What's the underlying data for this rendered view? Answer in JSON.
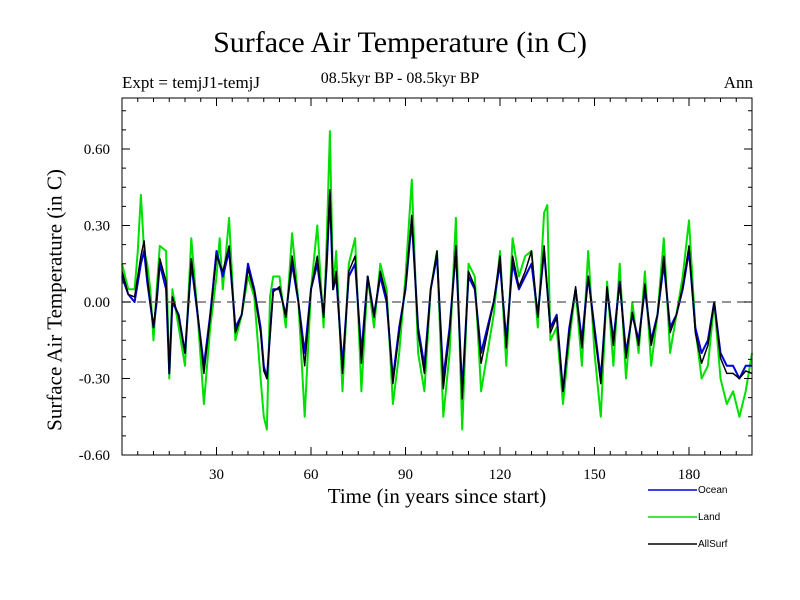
{
  "chart_data": {
    "type": "line",
    "title": "Surface Air Temperature (in C)",
    "subtitle": "08.5kyr BP - 08.5kyr BP",
    "left_label": "Expt = temjJ1-temjJ",
    "right_label": "Ann",
    "xlabel": "Time (in years since start)",
    "ylabel": "Surface Air Temperature (in C)",
    "xlim": [
      0,
      200
    ],
    "ylim": [
      -0.6,
      0.8
    ],
    "xticks": [
      30,
      60,
      90,
      120,
      150,
      180
    ],
    "xtick_labels": [
      "30",
      "60",
      "90",
      "120",
      "150",
      "180"
    ],
    "yticks": [
      -0.6,
      -0.3,
      0.0,
      0.3,
      0.6
    ],
    "ytick_labels": [
      "-0.60",
      "-0.30",
      "0.00",
      "0.30",
      "0.60"
    ],
    "zero_line": 0.0,
    "series": [
      {
        "name": "Land",
        "color": "#00e000",
        "x": [
          0,
          2,
          4,
          5,
          6,
          7,
          8,
          9,
          10,
          11,
          12,
          14,
          15,
          16,
          18,
          20,
          22,
          24,
          26,
          28,
          30,
          31,
          32,
          34,
          36,
          38,
          40,
          42,
          44,
          45,
          46,
          47,
          48,
          50,
          52,
          54,
          56,
          58,
          60,
          62,
          64,
          65,
          66,
          67,
          68,
          70,
          72,
          74,
          76,
          78,
          80,
          82,
          84,
          86,
          88,
          90,
          92,
          94,
          96,
          98,
          100,
          102,
          104,
          106,
          108,
          110,
          112,
          114,
          116,
          118,
          120,
          122,
          124,
          126,
          128,
          130,
          132,
          134,
          135,
          136,
          138,
          140,
          142,
          144,
          146,
          148,
          150,
          152,
          154,
          156,
          158,
          160,
          162,
          164,
          166,
          168,
          170,
          172,
          174,
          176,
          178,
          180,
          182,
          184,
          186,
          188,
          190,
          192,
          194,
          196,
          198,
          200
        ],
        "values": [
          0.15,
          0.05,
          0.05,
          0.2,
          0.42,
          0.2,
          0.15,
          0.05,
          -0.15,
          0.05,
          0.22,
          0.2,
          -0.3,
          0.05,
          -0.1,
          -0.25,
          0.25,
          -0.05,
          -0.4,
          -0.1,
          0.1,
          0.25,
          0.05,
          0.33,
          -0.15,
          -0.05,
          0.1,
          0.02,
          -0.3,
          -0.45,
          -0.5,
          0.02,
          0.1,
          0.1,
          -0.1,
          0.27,
          0.0,
          -0.45,
          0.05,
          0.3,
          -0.1,
          0.25,
          0.67,
          0.05,
          0.2,
          -0.35,
          0.15,
          0.25,
          -0.35,
          0.1,
          -0.1,
          0.15,
          0.05,
          -0.4,
          -0.2,
          0.1,
          0.48,
          -0.2,
          -0.35,
          0.05,
          0.2,
          -0.45,
          -0.2,
          0.33,
          -0.5,
          0.15,
          0.1,
          -0.35,
          -0.2,
          -0.05,
          0.2,
          -0.25,
          0.25,
          0.1,
          0.18,
          0.2,
          -0.1,
          0.35,
          0.38,
          -0.15,
          -0.1,
          -0.4,
          -0.15,
          0.05,
          -0.25,
          0.2,
          -0.2,
          -0.45,
          0.08,
          -0.25,
          0.15,
          -0.3,
          0.0,
          -0.2,
          0.12,
          -0.25,
          -0.05,
          0.25,
          -0.2,
          -0.05,
          0.1,
          0.32,
          -0.1,
          -0.3,
          -0.25,
          0.0,
          -0.3,
          -0.4,
          -0.35,
          -0.45,
          -0.35,
          -0.2
        ],
        "legend": "Land"
      },
      {
        "name": "Ocean",
        "color": "#0000d8",
        "x": [
          0,
          2,
          4,
          6,
          7,
          8,
          10,
          11,
          12,
          14,
          15,
          16,
          18,
          20,
          22,
          24,
          26,
          28,
          30,
          32,
          34,
          36,
          38,
          40,
          42,
          44,
          45,
          46,
          48,
          50,
          52,
          54,
          56,
          58,
          60,
          62,
          64,
          65,
          66,
          67,
          68,
          70,
          72,
          74,
          76,
          78,
          80,
          82,
          84,
          86,
          88,
          90,
          92,
          94,
          96,
          98,
          100,
          102,
          104,
          106,
          108,
          110,
          112,
          114,
          116,
          118,
          120,
          122,
          124,
          126,
          128,
          130,
          132,
          134,
          136,
          138,
          140,
          142,
          144,
          146,
          148,
          150,
          152,
          154,
          156,
          158,
          160,
          162,
          164,
          166,
          168,
          170,
          172,
          174,
          176,
          178,
          180,
          182,
          184,
          186,
          188,
          190,
          192,
          194,
          196,
          198,
          200
        ],
        "values": [
          0.1,
          0.03,
          0.0,
          0.15,
          0.2,
          0.08,
          -0.1,
          0.0,
          0.15,
          0.05,
          -0.28,
          0.0,
          -0.05,
          -0.2,
          0.15,
          -0.05,
          -0.25,
          -0.05,
          0.2,
          0.1,
          0.2,
          -0.1,
          -0.05,
          0.15,
          0.05,
          -0.1,
          -0.25,
          -0.3,
          0.05,
          0.05,
          -0.05,
          0.15,
          0.0,
          -0.2,
          0.05,
          0.15,
          -0.05,
          0.15,
          0.42,
          0.05,
          0.1,
          -0.25,
          0.1,
          0.15,
          -0.2,
          0.1,
          -0.05,
          0.1,
          0.0,
          -0.3,
          -0.1,
          0.05,
          0.32,
          -0.1,
          -0.25,
          0.05,
          0.18,
          -0.3,
          -0.1,
          0.2,
          -0.35,
          0.1,
          0.05,
          -0.2,
          -0.1,
          0.0,
          0.15,
          -0.15,
          0.15,
          0.05,
          0.1,
          0.15,
          -0.05,
          0.2,
          -0.1,
          -0.05,
          -0.35,
          -0.1,
          0.05,
          -0.15,
          0.1,
          -0.1,
          -0.3,
          0.05,
          -0.15,
          0.08,
          -0.2,
          -0.05,
          -0.15,
          0.05,
          -0.15,
          -0.05,
          0.15,
          -0.1,
          -0.05,
          0.05,
          0.2,
          -0.1,
          -0.2,
          -0.15,
          0.0,
          -0.2,
          -0.25,
          -0.25,
          -0.3,
          -0.25,
          -0.25
        ],
        "legend": "Ocean"
      },
      {
        "name": "AllSurf",
        "color": "#000000",
        "x": [
          0,
          2,
          4,
          6,
          7,
          8,
          10,
          11,
          12,
          14,
          15,
          16,
          18,
          20,
          22,
          24,
          26,
          28,
          30,
          32,
          34,
          36,
          38,
          40,
          42,
          44,
          45,
          46,
          48,
          50,
          52,
          54,
          56,
          58,
          60,
          62,
          64,
          65,
          66,
          67,
          68,
          70,
          72,
          74,
          76,
          78,
          80,
          82,
          84,
          86,
          88,
          90,
          92,
          94,
          96,
          98,
          100,
          102,
          104,
          106,
          108,
          110,
          112,
          114,
          116,
          118,
          120,
          122,
          124,
          126,
          128,
          130,
          132,
          134,
          136,
          138,
          140,
          142,
          144,
          146,
          148,
          150,
          152,
          154,
          156,
          158,
          160,
          162,
          164,
          166,
          168,
          170,
          172,
          174,
          176,
          178,
          180,
          182,
          184,
          186,
          188,
          190,
          192,
          194,
          196,
          198,
          200
        ],
        "values": [
          0.12,
          0.03,
          0.02,
          0.18,
          0.24,
          0.1,
          -0.1,
          0.02,
          0.17,
          0.08,
          -0.28,
          0.02,
          -0.06,
          -0.2,
          0.17,
          -0.04,
          -0.28,
          -0.06,
          0.18,
          0.12,
          0.22,
          -0.12,
          -0.05,
          0.13,
          0.04,
          -0.12,
          -0.27,
          -0.3,
          0.04,
          0.06,
          -0.06,
          0.18,
          0.0,
          -0.25,
          0.05,
          0.18,
          -0.06,
          0.18,
          0.44,
          0.05,
          0.12,
          -0.28,
          0.12,
          0.18,
          -0.24,
          0.1,
          -0.06,
          0.12,
          0.02,
          -0.32,
          -0.12,
          0.06,
          0.34,
          -0.12,
          -0.28,
          0.05,
          0.2,
          -0.34,
          -0.12,
          0.22,
          -0.38,
          0.12,
          0.06,
          -0.24,
          -0.12,
          0.0,
          0.18,
          -0.18,
          0.18,
          0.06,
          0.12,
          0.2,
          -0.06,
          0.22,
          -0.12,
          -0.06,
          -0.35,
          -0.12,
          0.06,
          -0.18,
          0.1,
          -0.12,
          -0.32,
          0.06,
          -0.17,
          0.08,
          -0.22,
          -0.04,
          -0.17,
          0.07,
          -0.17,
          -0.05,
          0.18,
          -0.12,
          -0.05,
          0.06,
          0.22,
          -0.12,
          -0.24,
          -0.17,
          0.0,
          -0.22,
          -0.28,
          -0.28,
          -0.3,
          -0.27,
          -0.28
        ],
        "legend": "AllSurf"
      }
    ],
    "legend_position": "bottom-right, below plot"
  }
}
